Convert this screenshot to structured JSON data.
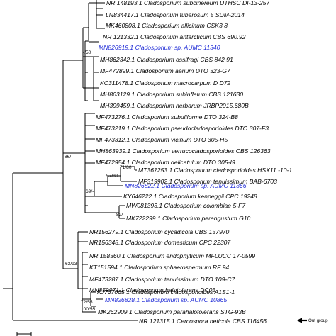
{
  "figure": {
    "outgroup_label": "Out group"
  },
  "taxa": [
    {
      "id": "t1",
      "label": "NR 148193.1 Cladosporium subcinereum UTHSC DI-13-257"
    },
    {
      "id": "t2",
      "label": "LN834417.1 Cladosporium tuberosum 5 SDM-2014"
    },
    {
      "id": "t3",
      "label": "MK460808.1 Cladosporium allicinum CSK3 8"
    },
    {
      "id": "t4",
      "label": "NR 121332.1 Cladosporium antarcticum CBS 690.92"
    },
    {
      "id": "t5",
      "label": "MN826919.1 Cladosporium sp. AUMC 11340",
      "highlight": true
    },
    {
      "id": "t6",
      "label": "MH862342.1 Cladosporium ossifragi CBS 842.91"
    },
    {
      "id": "t7",
      "label": "MF472899.1 Cladosporium aerium DTO 323-G7"
    },
    {
      "id": "t8",
      "label": "KC311478.1 Cladosporium macrocarpum D D72"
    },
    {
      "id": "t9",
      "label": "MH863129.1 Cladosporium subinflatum CBS 121630"
    },
    {
      "id": "t10",
      "label": "MH399459.1 Cladosporium herbarum JRBP2015.680B"
    },
    {
      "id": "t11",
      "label": "MF473276.1 Cladosporium subuliforme DTO 324-B8"
    },
    {
      "id": "t12",
      "label": "MF473219.1 Cladosporium pseudocladosporioides DTO 307-F3"
    },
    {
      "id": "t13",
      "label": "MF473312.1 Cladosporium vicinum DTO 305-H5"
    },
    {
      "id": "t14",
      "label": "MH863939.1 Cladosporium verrucocladosporioides CBS 126363"
    },
    {
      "id": "t15",
      "label": "MF472954.1 Cladosporium delicatulum DTO 305-I9"
    },
    {
      "id": "t16",
      "label": "MT367253.1 Cladosporium cladosporioides HSX11 -10-1"
    },
    {
      "id": "t17",
      "label": "MF319902.1 Cladosporium tenuissimum BAB-6703"
    },
    {
      "id": "t18",
      "label": "MN826822.1 Cladosporium sp. AUMC 11366",
      "highlight": true
    },
    {
      "id": "t19",
      "label": "KY646222.1 Cladosporium kenpeggii CPC 19248"
    },
    {
      "id": "t20",
      "label": "MW081393.1 Cladosporium colombiae 5-F7"
    },
    {
      "id": "t21",
      "label": "MK722299.1 Cladosporium perangustum G10"
    },
    {
      "id": "t22",
      "label": "NR156279.1 Cladosporium cycadicola CBS 137970"
    },
    {
      "id": "t23",
      "label": "NR156348.1 Cladosporium domesticum CPC 22307"
    },
    {
      "id": "t24",
      "label": "NR 158360.1 Cladosporium endophyticum MFLUCC 17-0599"
    },
    {
      "id": "t25",
      "label": "KT151594.1 Cladosporium sphaerospermum RF 94"
    },
    {
      "id": "t26",
      "label": "MF473287.1 Cladosporium tenuissimum DTO 109-C7"
    },
    {
      "id": "t27",
      "label": "MN859971.1 Cladosporium halotolerans DC03"
    },
    {
      "id": "t28",
      "label": "KJ767065.1 Cladosporium cladosporioides A1S1-1"
    },
    {
      "id": "t29",
      "label": "MN826828.1 Cladosporium sp. AUMC 10865",
      "highlight": true
    },
    {
      "id": "t30",
      "label": "MK262909.1 Cladosporium parahalotolerans STG-93B"
    },
    {
      "id": "t31",
      "label": "NR 121315.1 Cercospora beticola CBS 116456"
    }
  ],
  "support_values": [
    {
      "id": "s1",
      "label": "-/50"
    },
    {
      "id": "s2",
      "label": "86/-"
    },
    {
      "id": "s3",
      "label": "71/80"
    },
    {
      "id": "s4",
      "label": "57/80"
    },
    {
      "id": "s5",
      "label": "69/-"
    },
    {
      "id": "s6",
      "label": "82/-"
    },
    {
      "id": "s7",
      "label": "63/93"
    },
    {
      "id": "s8",
      "label": "72/55"
    },
    {
      "id": "s9",
      "label": "100/55"
    }
  ]
}
